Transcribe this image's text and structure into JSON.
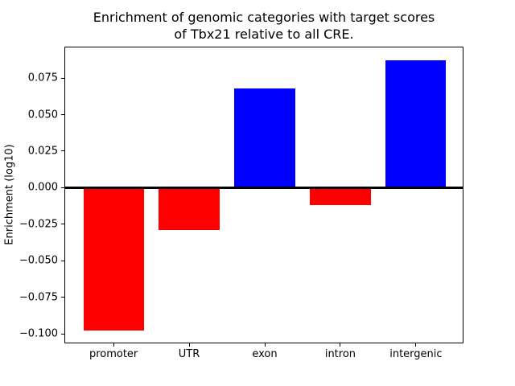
{
  "figure": {
    "title": "Enrichment of genomic categories with target scores\nof Tbx21 relative to all CRE.",
    "ylabel": "Enrichment (log10)"
  },
  "chart_data": {
    "type": "bar",
    "title": "Enrichment of genomic categories with target scores of Tbx21 relative to all CRE.",
    "xlabel": "",
    "ylabel": "Enrichment (log10)",
    "categories": [
      "promoter",
      "UTR",
      "exon",
      "intron",
      "intergenic"
    ],
    "values": [
      -0.098,
      -0.029,
      0.068,
      -0.012,
      0.087
    ],
    "bar_colors": [
      "#ff0000",
      "#ff0000",
      "#0000ff",
      "#ff0000",
      "#0000ff"
    ],
    "positive_color": "#0000ff",
    "negative_color": "#ff0000",
    "bar_width": 0.8,
    "xlim": [
      -0.64,
      4.64
    ],
    "ylim": [
      -0.10725,
      0.09625
    ],
    "yticks": [
      0.075,
      0.05,
      0.025,
      0,
      -0.025,
      -0.05,
      -0.075,
      -0.1
    ],
    "ytick_labels": [
      "0.075",
      "0.050",
      "0.025",
      "0.000",
      "−0.025",
      "−0.050",
      "−0.075",
      "−0.100"
    ],
    "zero_line": true,
    "grid": false,
    "legend": null
  }
}
